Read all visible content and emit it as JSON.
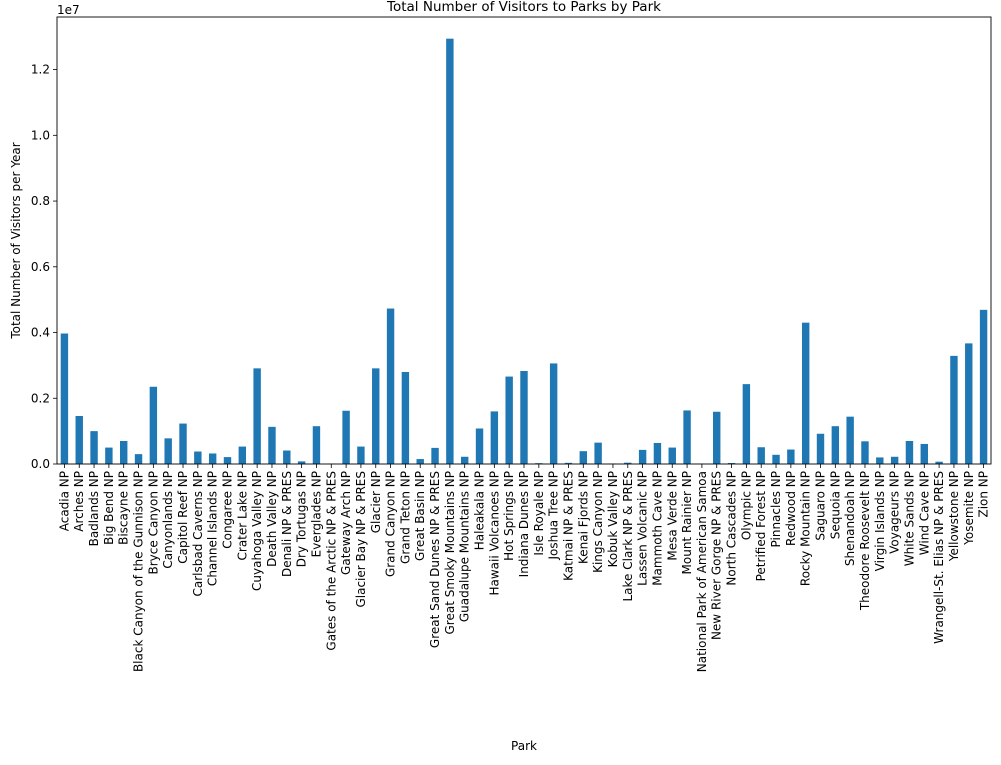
{
  "chart_data": {
    "type": "bar",
    "title": "Total Number of Visitors to Parks by Park",
    "xlabel": "Park",
    "ylabel": "Total Number of Visitors per Year",
    "y_offset_text": "1e7",
    "y_ticks": [
      0.0,
      0.2,
      0.4,
      0.6,
      0.8,
      1.0,
      1.2
    ],
    "y_tick_labels": [
      "0.0",
      "0.2",
      "0.4",
      "0.6",
      "0.8",
      "1.0",
      "1.2"
    ],
    "ylim": [
      0,
      13600000
    ],
    "grid": false,
    "bar_color": "#1f77b4",
    "categories": [
      "Acadia NP",
      "Arches NP",
      "Badlands NP",
      "Big Bend NP",
      "Biscayne NP",
      "Black Canyon of the Gunnison NP",
      "Bryce Canyon NP",
      "Canyonlands NP",
      "Capitol Reef NP",
      "Carlsbad Caverns NP",
      "Channel Islands NP",
      "Congaree NP",
      "Crater Lake NP",
      "Cuyahoga Valley NP",
      "Death Valley NP",
      "Denali NP & PRES",
      "Dry Tortugas NP",
      "Everglades NP",
      "Gates of the Arctic NP & PRES",
      "Gateway Arch NP",
      "Glacier Bay NP & PRES",
      "Glacier NP",
      "Grand Canyon NP",
      "Grand Teton NP",
      "Great Basin NP",
      "Great Sand Dunes NP & PRES",
      "Great Smoky Mountains NP",
      "Guadalupe Mountains NP",
      "Haleakala NP",
      "Hawaii Volcanoes NP",
      "Hot Springs NP",
      "Indiana Dunes NP",
      "Isle Royale NP",
      "Joshua Tree NP",
      "Katmai NP & PRES",
      "Kenai Fjords NP",
      "Kings Canyon NP",
      "Kobuk Valley NP",
      "Lake Clark NP & PRES",
      "Lassen Volcanic NP",
      "Mammoth Cave NP",
      "Mesa Verde NP",
      "Mount Rainier NP",
      "National Park of American Samoa",
      "New River Gorge NP & PRES",
      "North Cascades NP",
      "Olympic NP",
      "Petrified Forest NP",
      "Pinnacles NP",
      "Redwood NP",
      "Rocky Mountain NP",
      "Saguaro NP",
      "Sequoia NP",
      "Shenandoah NP",
      "Theodore Roosevelt NP",
      "Virgin Islands NP",
      "Voyageurs NP",
      "White Sands NP",
      "Wind Cave NP",
      "Wrangell-St. Elias NP & PRES",
      "Yellowstone NP",
      "Yosemite NP",
      "Zion NP"
    ],
    "values": [
      3970000,
      1460000,
      1000000,
      500000,
      700000,
      300000,
      2350000,
      780000,
      1230000,
      380000,
      320000,
      210000,
      530000,
      2910000,
      1130000,
      410000,
      80000,
      1150000,
      10000,
      1620000,
      530000,
      2910000,
      4730000,
      2800000,
      150000,
      490000,
      12940000,
      220000,
      1080000,
      1600000,
      2660000,
      2830000,
      25000,
      3060000,
      35000,
      390000,
      650000,
      15000,
      40000,
      430000,
      640000,
      500000,
      1630000,
      8000,
      1590000,
      30000,
      2430000,
      510000,
      280000,
      440000,
      4300000,
      920000,
      1150000,
      1440000,
      690000,
      200000,
      220000,
      700000,
      610000,
      70000,
      3290000,
      3670000,
      4690000
    ]
  }
}
